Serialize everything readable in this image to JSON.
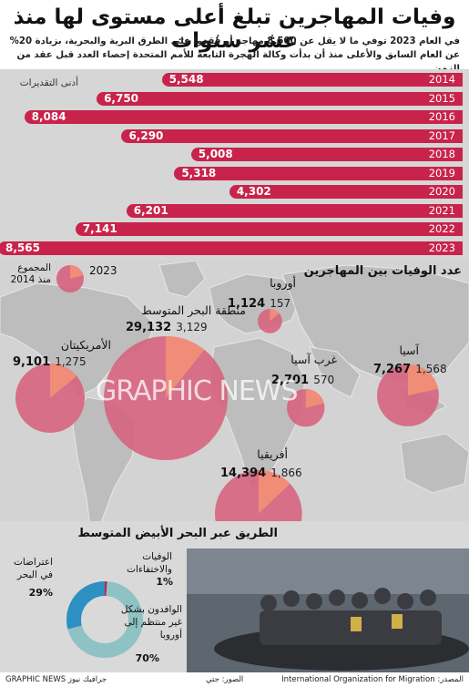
{
  "header": {
    "title": "وفيات المهاجرين تبلغ أعلى مستوى لها منذ عشر سنوات",
    "subtitle": "في العام 2023 توفي ما لا يقل عن 8.500 مهاجر أو فُقدوا على الطرق البرية والبحرية، بزيادة 20% عن العام السابق والأعلى منذ أن بدأت وكالة الهجرة التابعة للأمم المتحدة إحصاء العدد قبل عقد من الزمن"
  },
  "bars": {
    "note": "أدنى التقديرات",
    "color": "#c8234b"
  },
  "map": {
    "title": "عدد الوفيات بين المهاجرين",
    "legend_total": "المجموع منذ 2014",
    "legend_year": "2023",
    "watermark": "GRAPHIC NEWS",
    "regions": [
      {
        "name": "أوروبا",
        "total": "1,124",
        "y2023": "157"
      },
      {
        "name": "منطقة البحر المتوسط",
        "total": "29,132",
        "y2023": "3,129"
      },
      {
        "name": "الأمريكيتان",
        "total": "9,101",
        "y2023": "1,275"
      },
      {
        "name": "غرب آسيا",
        "total": "2,701",
        "y2023": "570"
      },
      {
        "name": "آسيا",
        "total": "7,267",
        "y2023": "1,568"
      },
      {
        "name": "أفريقيا",
        "total": "14,394",
        "y2023": "1,866"
      }
    ]
  },
  "med": {
    "title": "الطريق عبر البحر الأبيض المتوسط",
    "deaths_label": "الوفيات والاختفاءات",
    "deaths_pct": "1%",
    "intercept_label": "اعتراضات في البحر",
    "intercept_pct": "29%",
    "arrivals_label": "الوافدون بشكل غير منتظم إلى أوروبا",
    "arrivals_pct": "70%"
  },
  "footer": {
    "source": "المصدر: International Organization for Migration",
    "photo": "الصور: جتي",
    "brand": "GRAPHIC NEWS جرافيك نيوز"
  },
  "chart_data": [
    {
      "type": "bar",
      "title": "",
      "categories": [
        "2014",
        "2015",
        "2016",
        "2017",
        "2018",
        "2019",
        "2020",
        "2021",
        "2022",
        "2023"
      ],
      "values": [
        5548,
        6750,
        8084,
        6290,
        5008,
        5318,
        4302,
        6201,
        7141,
        8565
      ],
      "labels": [
        "5,548",
        "6,750",
        "8,084",
        "6,290",
        "5,008",
        "5,318",
        "4,302",
        "6,201",
        "7,141",
        "8,565"
      ]
    },
    {
      "type": "pie",
      "title": "الطريق عبر البحر الأبيض المتوسط",
      "categories": [
        "الوافدون بشكل غير منتظم إلى أوروبا",
        "اعتراضات في البحر",
        "الوفيات والاختفاءات"
      ],
      "values": [
        70,
        29,
        1
      ],
      "colors": [
        "#8fc2c3",
        "#2d8fc2",
        "#c8234b"
      ]
    }
  ]
}
